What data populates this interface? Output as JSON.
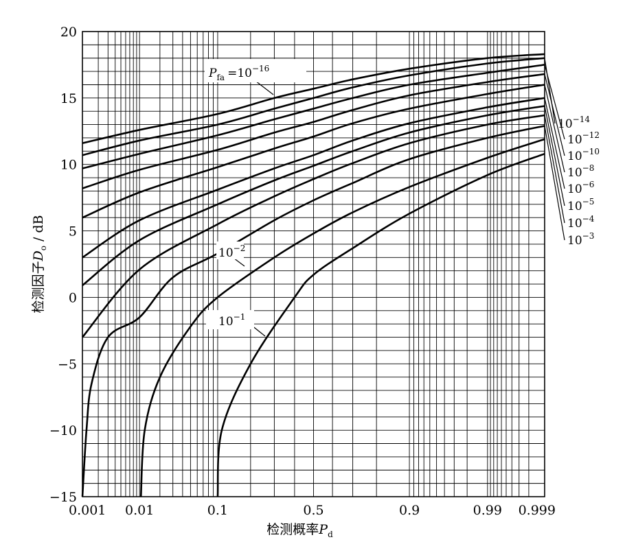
{
  "chart_data": {
    "type": "line",
    "title": "",
    "xlabel": "检测概率",
    "xlabel_var": "P",
    "xlabel_sub": "d",
    "ylabel": "检测因子",
    "ylabel_var": "D",
    "ylabel_sub": "o",
    "ylabel_unit": " / dB",
    "x_scale": "normal-probability",
    "xlim": [
      0.001,
      0.999
    ],
    "ylim": [
      -15,
      20
    ],
    "grid": true,
    "x_ticks": [
      {
        "value": 0.001,
        "label": "0.001"
      },
      {
        "value": 0.01,
        "label": "0.01"
      },
      {
        "value": 0.1,
        "label": "0.1"
      },
      {
        "value": 0.5,
        "label": "0.5"
      },
      {
        "value": 0.9,
        "label": "0.9"
      },
      {
        "value": 0.99,
        "label": "0.99"
      },
      {
        "value": 0.999,
        "label": "0.999"
      }
    ],
    "y_ticks": [
      {
        "value": 20,
        "label": "20"
      },
      {
        "value": 15,
        "label": "15"
      },
      {
        "value": 10,
        "label": "10"
      },
      {
        "value": 5,
        "label": "5"
      },
      {
        "value": 0,
        "label": "0"
      },
      {
        "value": -5,
        "label": "−5"
      },
      {
        "value": -10,
        "label": "−10"
      },
      {
        "value": -15,
        "label": "−15"
      }
    ],
    "x_grid": [
      0.001,
      0.002,
      0.003,
      0.004,
      0.005,
      0.006,
      0.007,
      0.008,
      0.009,
      0.01,
      0.02,
      0.03,
      0.04,
      0.05,
      0.06,
      0.07,
      0.08,
      0.09,
      0.1,
      0.2,
      0.3,
      0.4,
      0.5,
      0.6,
      0.7,
      0.8,
      0.9,
      0.91,
      0.92,
      0.93,
      0.94,
      0.95,
      0.96,
      0.97,
      0.98,
      0.99,
      0.991,
      0.992,
      0.993,
      0.994,
      0.995,
      0.996,
      0.997,
      0.998,
      0.999
    ],
    "y_grid": [
      -15,
      -14,
      -13,
      -12,
      -11,
      -10,
      -9,
      -8,
      -7,
      -6,
      -5,
      -4,
      -3,
      -2,
      -1,
      0,
      1,
      2,
      3,
      4,
      5,
      6,
      7,
      8,
      9,
      10,
      11,
      12,
      13,
      14,
      15,
      16,
      17,
      18,
      19,
      20
    ],
    "series": [
      {
        "name": "10^-16",
        "pfa_exp": -16,
        "points": [
          [
            0.001,
            11.6
          ],
          [
            0.01,
            12.6
          ],
          [
            0.1,
            13.8
          ],
          [
            0.3,
            15.0
          ],
          [
            0.5,
            15.7
          ],
          [
            0.7,
            16.4
          ],
          [
            0.9,
            17.2
          ],
          [
            0.99,
            18.0
          ],
          [
            0.999,
            18.3
          ]
        ]
      },
      {
        "name": "10^-14",
        "pfa_exp": -14,
        "points": [
          [
            0.001,
            10.7
          ],
          [
            0.01,
            11.8
          ],
          [
            0.1,
            13.0
          ],
          [
            0.3,
            14.2
          ],
          [
            0.5,
            15.0
          ],
          [
            0.7,
            15.8
          ],
          [
            0.9,
            16.7
          ],
          [
            0.99,
            17.6
          ],
          [
            0.999,
            18.0
          ]
        ]
      },
      {
        "name": "10^-12",
        "pfa_exp": -12,
        "points": [
          [
            0.001,
            9.7
          ],
          [
            0.01,
            10.8
          ],
          [
            0.1,
            12.2
          ],
          [
            0.3,
            13.4
          ],
          [
            0.5,
            14.2
          ],
          [
            0.7,
            15.0
          ],
          [
            0.9,
            16.0
          ],
          [
            0.99,
            16.9
          ],
          [
            0.999,
            17.5
          ]
        ]
      },
      {
        "name": "10^-10",
        "pfa_exp": -10,
        "points": [
          [
            0.001,
            8.2
          ],
          [
            0.01,
            9.6
          ],
          [
            0.1,
            11.1
          ],
          [
            0.3,
            12.4
          ],
          [
            0.5,
            13.2
          ],
          [
            0.7,
            14.1
          ],
          [
            0.9,
            15.2
          ],
          [
            0.99,
            16.2
          ],
          [
            0.999,
            16.8
          ]
        ]
      },
      {
        "name": "10^-8",
        "pfa_exp": -8,
        "points": [
          [
            0.001,
            6.0
          ],
          [
            0.01,
            7.9
          ],
          [
            0.1,
            9.8
          ],
          [
            0.3,
            11.2
          ],
          [
            0.5,
            12.1
          ],
          [
            0.7,
            13.1
          ],
          [
            0.9,
            14.2
          ],
          [
            0.99,
            15.3
          ],
          [
            0.999,
            16.0
          ]
        ]
      },
      {
        "name": "10^-6",
        "pfa_exp": -6,
        "points": [
          [
            0.001,
            3.0
          ],
          [
            0.01,
            5.8
          ],
          [
            0.1,
            8.1
          ],
          [
            0.3,
            9.7
          ],
          [
            0.5,
            10.7
          ],
          [
            0.7,
            11.8
          ],
          [
            0.9,
            13.1
          ],
          [
            0.99,
            14.3
          ],
          [
            0.999,
            15.0
          ]
        ]
      },
      {
        "name": "10^-5",
        "pfa_exp": -5,
        "points": [
          [
            0.001,
            0.9
          ],
          [
            0.01,
            4.3
          ],
          [
            0.1,
            7.0
          ],
          [
            0.3,
            8.8
          ],
          [
            0.5,
            9.9
          ],
          [
            0.7,
            11.0
          ],
          [
            0.9,
            12.4
          ],
          [
            0.99,
            13.7
          ],
          [
            0.999,
            14.4
          ]
        ]
      },
      {
        "name": "10^-4",
        "pfa_exp": -4,
        "points": [
          [
            0.001,
            -3.0
          ],
          [
            0.01,
            2.1
          ],
          [
            0.1,
            5.5
          ],
          [
            0.3,
            7.6
          ],
          [
            0.5,
            8.9
          ],
          [
            0.7,
            10.1
          ],
          [
            0.9,
            11.6
          ],
          [
            0.99,
            13.0
          ],
          [
            0.999,
            13.7
          ]
        ]
      },
      {
        "name": "10^-3",
        "pfa_exp": -3,
        "points": [
          [
            0.001,
            -15.0
          ],
          [
            0.0012,
            -10.0
          ],
          [
            0.0015,
            -6.5
          ],
          [
            0.003,
            -3.0
          ],
          [
            0.01,
            -1.5
          ],
          [
            0.03,
            1.5
          ],
          [
            0.1,
            3.3
          ],
          [
            0.3,
            5.8
          ],
          [
            0.5,
            7.3
          ],
          [
            0.7,
            8.6
          ],
          [
            0.9,
            10.4
          ],
          [
            0.99,
            12.0
          ],
          [
            0.999,
            12.9
          ]
        ]
      },
      {
        "name": "10^-2",
        "pfa_exp": -2,
        "points": [
          [
            0.0105,
            -15.0
          ],
          [
            0.012,
            -10.0
          ],
          [
            0.02,
            -6.0
          ],
          [
            0.05,
            -2.2
          ],
          [
            0.1,
            0.0
          ],
          [
            0.3,
            3.0
          ],
          [
            0.5,
            4.8
          ],
          [
            0.7,
            6.4
          ],
          [
            0.9,
            8.3
          ],
          [
            0.99,
            10.5
          ],
          [
            0.999,
            11.9
          ]
        ]
      },
      {
        "name": "10^-1",
        "pfa_exp": -1,
        "points": [
          [
            0.1,
            -15.0
          ],
          [
            0.11,
            -10.0
          ],
          [
            0.2,
            -5.0
          ],
          [
            0.4,
            0.0
          ],
          [
            0.5,
            1.7
          ],
          [
            0.7,
            3.7
          ],
          [
            0.9,
            6.3
          ],
          [
            0.99,
            9.2
          ],
          [
            0.999,
            10.8
          ]
        ]
      }
    ],
    "annotations": [
      {
        "series": "10^-16",
        "prefix_var": "P",
        "prefix_sub": "fa",
        "eq": "=",
        "base": "10",
        "exp": "−16"
      },
      {
        "series": "10^-14",
        "base": "10",
        "exp": "−14"
      },
      {
        "series": "10^-12",
        "base": "10",
        "exp": "−12"
      },
      {
        "series": "10^-10",
        "base": "10",
        "exp": "−10"
      },
      {
        "series": "10^-8",
        "base": "10",
        "exp": "−8"
      },
      {
        "series": "10^-6",
        "base": "10",
        "exp": "−6"
      },
      {
        "series": "10^-5",
        "base": "10",
        "exp": "−5"
      },
      {
        "series": "10^-4",
        "base": "10",
        "exp": "−4"
      },
      {
        "series": "10^-3",
        "base": "10",
        "exp": "−3"
      },
      {
        "series": "10^-2",
        "base": "10",
        "exp": "−2"
      },
      {
        "series": "10^-1",
        "base": "10",
        "exp": "−1"
      }
    ]
  }
}
